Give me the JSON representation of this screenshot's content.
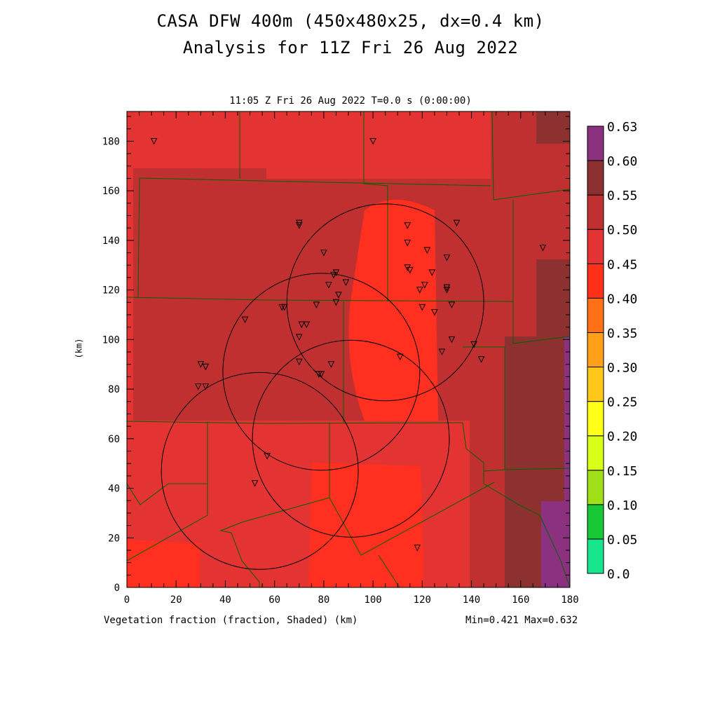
{
  "title_line1": "CASA DFW 400m (450x480x25, dx=0.4 km)",
  "title_line2": "Analysis for 11Z Fri 26 Aug 2022",
  "subtitle": "11:05 Z Fri 26 Aug 2022   T=0.0 s (0:00:00)",
  "xlabel": "Vegetation fraction (fraction, Shaded)  (km)",
  "ylabel": "(km)",
  "minmax": "Min=0.421 Max=0.632",
  "chart_data": {
    "type": "heatmap",
    "field": "Vegetation fraction",
    "units": "fraction",
    "xlim": [
      0,
      180
    ],
    "ylim": [
      0,
      192
    ],
    "xticks": [
      "0",
      "20",
      "40",
      "60",
      "80",
      "100",
      "120",
      "140",
      "160",
      "180"
    ],
    "yticks": [
      "0",
      "20",
      "40",
      "60",
      "80",
      "100",
      "120",
      "140",
      "160",
      "180"
    ],
    "min": 0.421,
    "max": 0.632,
    "colorbar": {
      "labels": [
        "0.0",
        "0.05",
        "0.10",
        "0.15",
        "0.20",
        "0.25",
        "0.30",
        "0.35",
        "0.40",
        "0.45",
        "0.50",
        "0.55",
        "0.60",
        "0.63"
      ],
      "colors": [
        "#18e68c",
        "#18c834",
        "#a0e018",
        "#d8ff18",
        "#ffff18",
        "#ffc818",
        "#ffa018",
        "#ff7018",
        "#ff3018",
        "#e33333",
        "#c03030",
        "#8c3030",
        "#8c3080"
      ]
    },
    "radar_circles_center_km": [
      [
        105,
        115
      ],
      [
        79,
        87
      ],
      [
        91,
        60
      ],
      [
        54,
        47
      ]
    ],
    "stations_km": [
      [
        11,
        180
      ],
      [
        100,
        180
      ],
      [
        70,
        147
      ],
      [
        70,
        146
      ],
      [
        114,
        146
      ],
      [
        134,
        147
      ],
      [
        80,
        135
      ],
      [
        114,
        139
      ],
      [
        122,
        136
      ],
      [
        169,
        137
      ],
      [
        85,
        127
      ],
      [
        84,
        126
      ],
      [
        114,
        129
      ],
      [
        115,
        128
      ],
      [
        130,
        133
      ],
      [
        124,
        127
      ],
      [
        121,
        122
      ],
      [
        119,
        120
      ],
      [
        82,
        122
      ],
      [
        89,
        123
      ],
      [
        86,
        118
      ],
      [
        85,
        115
      ],
      [
        77,
        114
      ],
      [
        130,
        120
      ],
      [
        130,
        121
      ],
      [
        63,
        113
      ],
      [
        64,
        113
      ],
      [
        132,
        114
      ],
      [
        120,
        113
      ],
      [
        125,
        111
      ],
      [
        48,
        108
      ],
      [
        71,
        106
      ],
      [
        73,
        106
      ],
      [
        70,
        101
      ],
      [
        132,
        100
      ],
      [
        141,
        98
      ],
      [
        111,
        93
      ],
      [
        128,
        95
      ],
      [
        144,
        92
      ],
      [
        70,
        91
      ],
      [
        83,
        90
      ],
      [
        78,
        86
      ],
      [
        79,
        86
      ],
      [
        30,
        90
      ],
      [
        32,
        89
      ],
      [
        29,
        81
      ],
      [
        32,
        81
      ],
      [
        57,
        53
      ],
      [
        52,
        42
      ],
      [
        118,
        16
      ]
    ]
  }
}
